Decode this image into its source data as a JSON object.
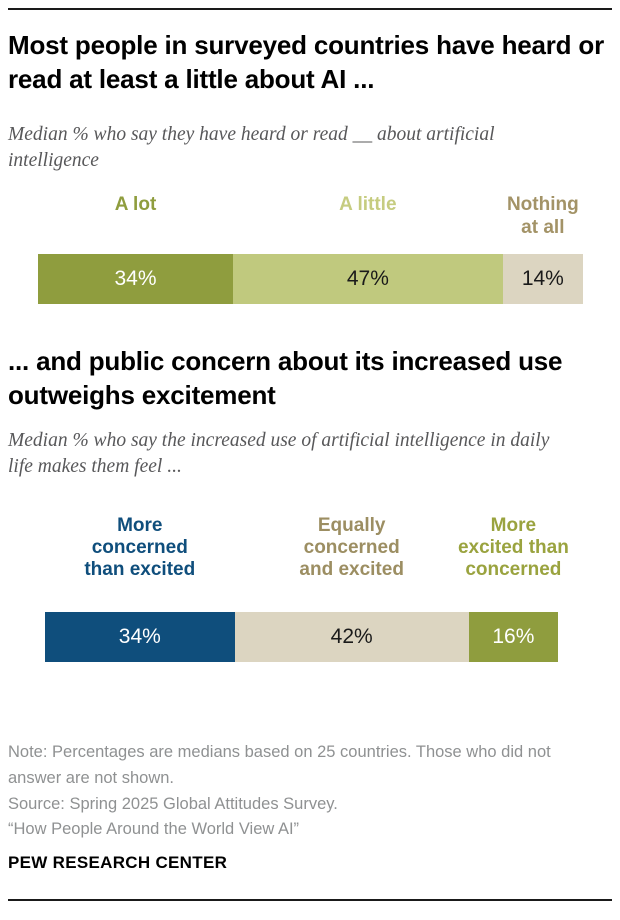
{
  "chart_data": [
    {
      "type": "bar",
      "stacked": true,
      "orientation": "horizontal",
      "title": "Most people in surveyed countries have heard or read at least a little about AI ...",
      "subtitle": "Median % who say they have heard or read __ about artificial intelligence",
      "categories": [
        "A lot",
        "A little",
        "Nothing at all"
      ],
      "values": [
        34,
        47,
        14
      ],
      "value_labels": [
        "34%",
        "47%",
        "14%"
      ],
      "segment_colors": [
        "#8f9d3e",
        "#c0c97e",
        "#dcd5c1"
      ],
      "value_text_colors": [
        "#ffffff",
        "#1a1a1a",
        "#1a1a1a"
      ],
      "legend_colors": [
        "#8f9d3e",
        "#c6cc80",
        "#a39367"
      ],
      "label_lines": [
        [
          "A lot"
        ],
        [
          "A little"
        ],
        [
          "Nothing",
          "at all"
        ]
      ],
      "axis": "none",
      "grid": false,
      "legend_position": "above-bar"
    },
    {
      "type": "bar",
      "stacked": true,
      "orientation": "horizontal",
      "title": "... and public concern about its increased use outweighs excitement",
      "subtitle": "Median % who say the increased use of artificial intelligence in daily life makes them feel ...",
      "categories": [
        "More concerned than excited",
        "Equally concerned and excited",
        "More excited than concerned"
      ],
      "values": [
        34,
        42,
        16
      ],
      "value_labels": [
        "34%",
        "42%",
        "16%"
      ],
      "segment_colors": [
        "#0f4e7c",
        "#dcd5c1",
        "#8f9d3e"
      ],
      "value_text_colors": [
        "#ffffff",
        "#1a1a1a",
        "#ffffff"
      ],
      "legend_colors": [
        "#0f4e7c",
        "#9c8e62",
        "#9aa33f"
      ],
      "label_lines": [
        [
          "More",
          "concerned",
          "than excited"
        ],
        [
          "Equally",
          "concerned",
          "and excited"
        ],
        [
          "More",
          "excited than",
          "concerned"
        ]
      ],
      "axis": "none",
      "grid": false,
      "legend_position": "above-bar"
    }
  ],
  "footer": {
    "lines": [
      "Note: Percentages are medians based on 25 countries. Those who did not answer are not shown.",
      "Source: Spring 2025 Global Attitudes Survey.",
      "“How People Around the World View AI”"
    ],
    "brand": "PEW RESEARCH CENTER"
  }
}
